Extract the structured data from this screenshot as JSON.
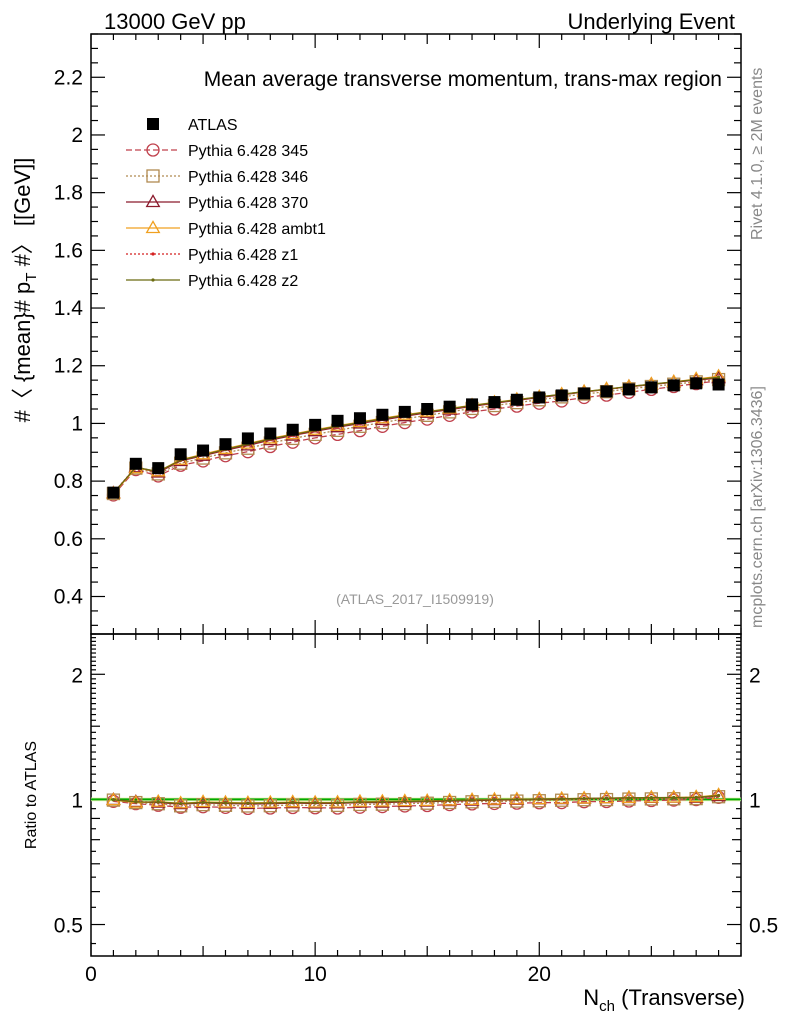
{
  "header": {
    "left": "13000 GeV pp",
    "right": "Underlying Event"
  },
  "side_labels": {
    "rivet": "Rivet 4.1.0, ≥ 2M events",
    "mcplots": "mcplots.cern.ch [arXiv:1306.3436]"
  },
  "chart_data": [
    {
      "type": "line",
      "title": "Mean average transverse momentum, trans-max region",
      "ylabel": "#〈{mean}# p_T #〉 [[GeV]]",
      "ylabel_parts": {
        "pre": "#〈 {mean}# p",
        "sub": "T",
        "post": " #〉 [[GeV]]"
      },
      "watermark": "(ATLAS_2017_I1509919)",
      "xlim": [
        0,
        29
      ],
      "ylim": [
        0.27,
        2.35
      ],
      "yticks": [
        0.4,
        0.6,
        0.8,
        1.0,
        1.2,
        1.4,
        1.6,
        1.8,
        2.0,
        2.2
      ],
      "ytick_labels": [
        "0.4",
        "0.6",
        "0.8",
        "1",
        "1.2",
        "1.4",
        "1.6",
        "1.8",
        "2",
        "2.2"
      ],
      "x": [
        1,
        2,
        3,
        4,
        5,
        6,
        7,
        8,
        9,
        10,
        11,
        12,
        13,
        14,
        15,
        16,
        17,
        18,
        19,
        20,
        21,
        22,
        23,
        24,
        25,
        26,
        27,
        28
      ],
      "series": [
        {
          "name": "ATLAS",
          "color": "#000000",
          "marker": "square",
          "line": "none",
          "values": [
            0.76,
            0.86,
            0.845,
            0.893,
            0.906,
            0.928,
            0.948,
            0.965,
            0.978,
            0.995,
            1.009,
            1.018,
            1.03,
            1.04,
            1.05,
            1.058,
            1.066,
            1.074,
            1.082,
            1.09,
            1.097,
            1.104,
            1.111,
            1.118,
            1.125,
            1.132,
            1.139,
            1.135
          ]
        },
        {
          "name": "Pythia 6.428 345",
          "color": "#c0404c",
          "marker": "circle",
          "line": "dashed",
          "values": [
            0.752,
            0.84,
            0.818,
            0.855,
            0.87,
            0.888,
            0.902,
            0.92,
            0.935,
            0.95,
            0.962,
            0.975,
            0.99,
            1.003,
            1.015,
            1.028,
            1.04,
            1.05,
            1.06,
            1.07,
            1.078,
            1.09,
            1.098,
            1.108,
            1.118,
            1.128,
            1.138,
            1.148
          ]
        },
        {
          "name": "Pythia 6.428 346",
          "color": "#b08a50",
          "marker": "square-open",
          "line": "dotted",
          "values": [
            0.757,
            0.845,
            0.825,
            0.862,
            0.88,
            0.898,
            0.914,
            0.932,
            0.948,
            0.962,
            0.976,
            0.99,
            1.003,
            1.016,
            1.028,
            1.04,
            1.052,
            1.062,
            1.072,
            1.082,
            1.092,
            1.102,
            1.11,
            1.12,
            1.128,
            1.136,
            1.144,
            1.152
          ]
        },
        {
          "name": "Pythia 6.428 370",
          "color": "#8b1a2c",
          "marker": "triangle-open",
          "line": "solid",
          "values": [
            0.758,
            0.848,
            0.83,
            0.87,
            0.888,
            0.907,
            0.924,
            0.942,
            0.958,
            0.973,
            0.987,
            1.0,
            1.012,
            1.025,
            1.037,
            1.048,
            1.059,
            1.07,
            1.08,
            1.09,
            1.099,
            1.109,
            1.118,
            1.127,
            1.135,
            1.143,
            1.15,
            1.157
          ]
        },
        {
          "name": "Pythia 6.428 ambt1",
          "color": "#f0a020",
          "marker": "triangle-open",
          "line": "solid",
          "values": [
            0.757,
            0.845,
            0.834,
            0.874,
            0.893,
            0.912,
            0.93,
            0.948,
            0.963,
            0.978,
            0.992,
            1.005,
            1.018,
            1.03,
            1.041,
            1.052,
            1.063,
            1.073,
            1.083,
            1.092,
            1.101,
            1.11,
            1.119,
            1.128,
            1.136,
            1.144,
            1.154,
            1.163
          ]
        },
        {
          "name": "Pythia 6.428 z1",
          "color": "#d42020",
          "marker": "dot",
          "line": "dotted",
          "values": [
            0.759,
            0.849,
            0.832,
            0.872,
            0.89,
            0.909,
            0.927,
            0.945,
            0.96,
            0.975,
            0.989,
            1.002,
            1.015,
            1.027,
            1.039,
            1.05,
            1.061,
            1.071,
            1.081,
            1.091,
            1.1,
            1.109,
            1.118,
            1.127,
            1.135,
            1.143,
            1.151,
            1.159
          ]
        },
        {
          "name": "Pythia 6.428 z2",
          "color": "#6b6b10",
          "marker": "dot",
          "line": "solid",
          "values": [
            0.758,
            0.848,
            0.833,
            0.873,
            0.891,
            0.91,
            0.928,
            0.946,
            0.961,
            0.976,
            0.99,
            1.003,
            1.016,
            1.028,
            1.04,
            1.051,
            1.062,
            1.072,
            1.082,
            1.092,
            1.101,
            1.11,
            1.119,
            1.128,
            1.136,
            1.144,
            1.152,
            1.16
          ]
        }
      ]
    },
    {
      "type": "line",
      "title": "",
      "ylabel": "Ratio to ATLAS",
      "xlabel": "N_ch (Transverse)",
      "xlabel_parts": {
        "pre": "N",
        "sub": "ch",
        "post": " (Transverse)"
      },
      "xticks": [
        0,
        10,
        20
      ],
      "xtick_labels": [
        "0",
        "10",
        "20"
      ],
      "xlim": [
        0,
        29
      ],
      "ylim": [
        0.42,
        2.5
      ],
      "yscale": "log",
      "yticks": [
        0.5,
        1,
        2
      ],
      "ytick_labels_left": [
        "0.5",
        "1",
        "2"
      ],
      "ytick_labels_right": [
        "0.5",
        "1",
        "2"
      ],
      "reference": {
        "value": 1.0,
        "color": "#00aa00",
        "band_color": "#e8f2b0"
      }
    }
  ]
}
